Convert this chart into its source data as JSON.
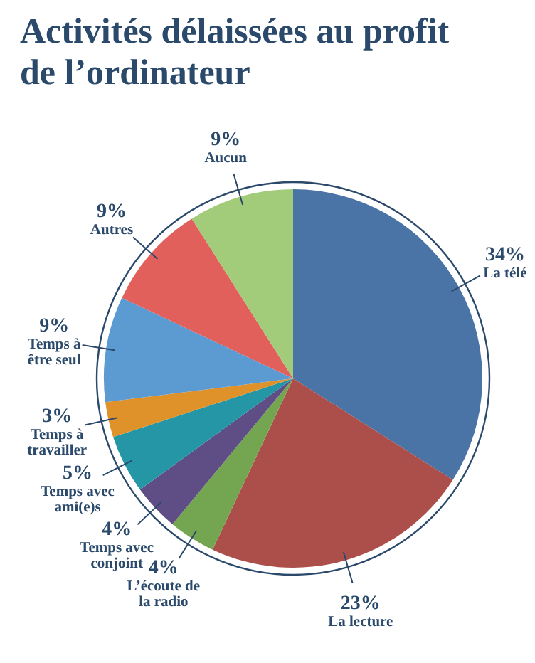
{
  "chart_data": {
    "type": "pie",
    "title": "Activités délaissées au profit de l’ordinateur",
    "categories": [
      "La télé",
      "La lecture",
      "L’écoute de la radio",
      "Temps avec conjoint",
      "Temps avec ami(e)s",
      "Temps à travailler",
      "Temps à être seul",
      "Autres",
      "Aucun"
    ],
    "values": [
      34,
      23,
      4,
      4,
      5,
      3,
      9,
      9,
      9
    ],
    "value_labels": [
      "34%",
      "23%",
      "4%",
      "4%",
      "5%",
      "3%",
      "9%",
      "9%",
      "9%"
    ],
    "colors": [
      "#4a74a6",
      "#ac4f4b",
      "#74a550",
      "#5f4e86",
      "#2596a6",
      "#e0922a",
      "#5b9bd2",
      "#e2605c",
      "#a2cb7a"
    ]
  }
}
